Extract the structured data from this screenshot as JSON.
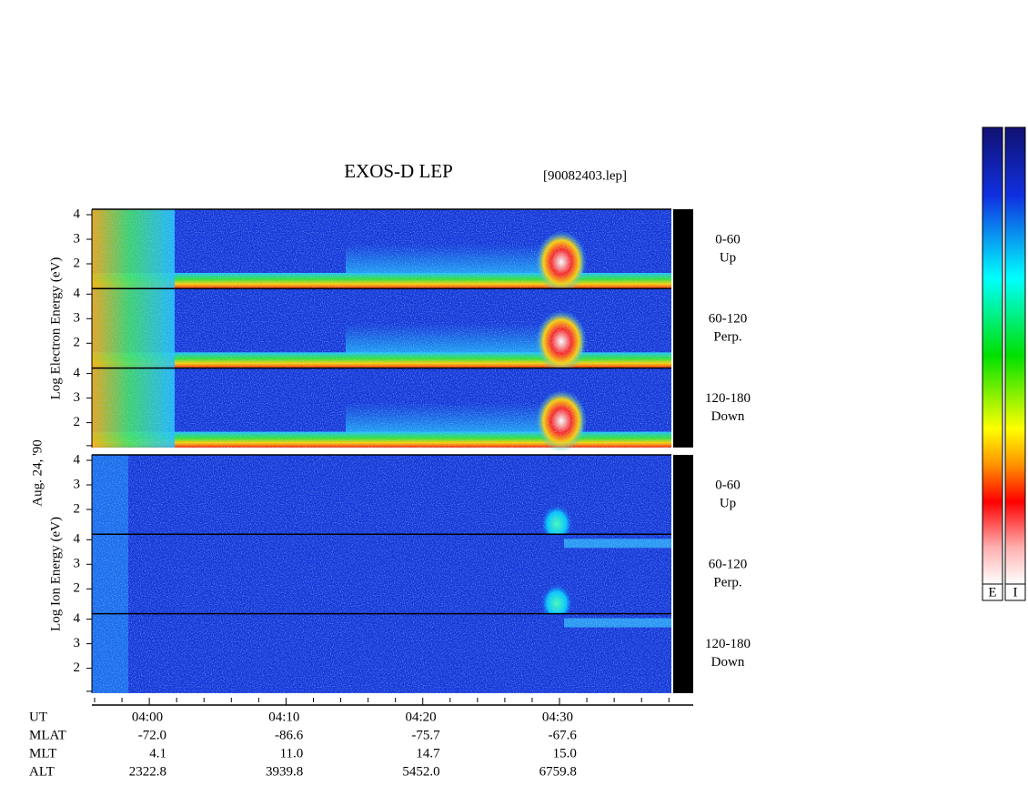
{
  "header": {
    "title": "EXOS-D LEP",
    "file": "[90082403.lep]"
  },
  "date": "Aug. 24, '90",
  "panels": [
    {
      "y_label": "Log Electron Energy (eV)",
      "subpanels": [
        {
          "ticks": [
            4,
            3,
            2
          ],
          "angle": "0-60",
          "direction": "Up"
        },
        {
          "ticks": [
            4,
            3,
            2
          ],
          "angle": "60-120",
          "direction": "Perp."
        },
        {
          "ticks": [
            4,
            3,
            2
          ],
          "angle": "120-180",
          "direction": "Down"
        }
      ]
    },
    {
      "y_label": "Log Ion Energy (eV)",
      "subpanels": [
        {
          "ticks": [
            4,
            3,
            2
          ],
          "angle": "0-60",
          "direction": "Up"
        },
        {
          "ticks": [
            4,
            3,
            2
          ],
          "angle": "60-120",
          "direction": "Perp."
        },
        {
          "ticks": [
            4,
            3,
            2
          ],
          "angle": "120-180",
          "direction": "Down"
        }
      ]
    }
  ],
  "time_axis": {
    "row_labels": [
      "UT",
      "MLAT",
      "MLT",
      "ALT"
    ],
    "columns": [
      [
        "04:00",
        "-72.0",
        "4.1",
        "2322.8"
      ],
      [
        "04:10",
        "-86.6",
        "11.0",
        "3939.8"
      ],
      [
        "04:20",
        "-75.7",
        "14.7",
        "5452.0"
      ],
      [
        "04:30",
        "-67.6",
        "15.0",
        "6759.8"
      ]
    ]
  },
  "colorbar": {
    "labels": [
      "E",
      "I"
    ]
  }
}
